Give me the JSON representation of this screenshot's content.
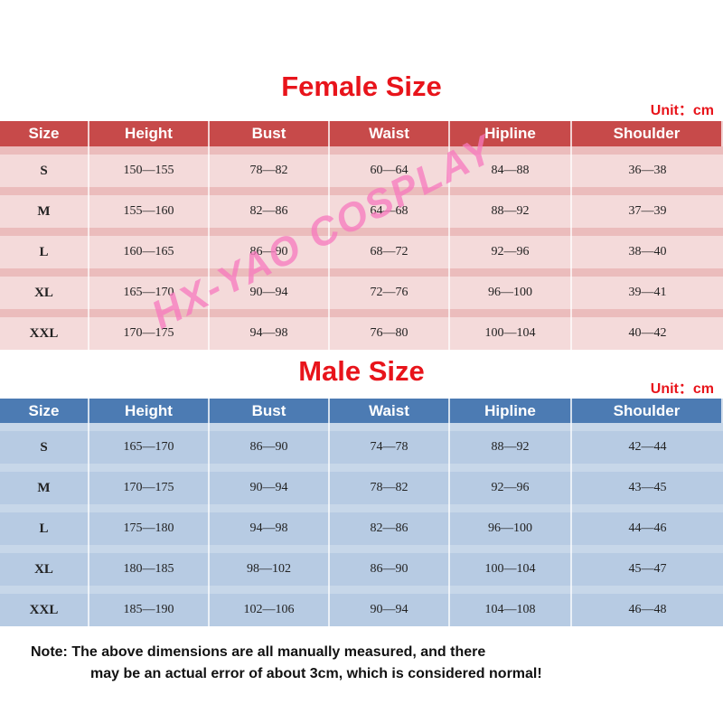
{
  "female": {
    "title": "Female Size",
    "unit": "Unit：cm",
    "headers": [
      "Size",
      "Height",
      "Bust",
      "Waist",
      "Hipline",
      "Shoulder"
    ],
    "rows": [
      [
        "S",
        "150—155",
        "78—82",
        "60—64",
        "84—88",
        "36—38"
      ],
      [
        "M",
        "155—160",
        "82—86",
        "64—68",
        "88—92",
        "37—39"
      ],
      [
        "L",
        "160—165",
        "86—90",
        "68—72",
        "92—96",
        "38—40"
      ],
      [
        "XL",
        "165—170",
        "90—94",
        "72—76",
        "96—100",
        "39—41"
      ],
      [
        "XXL",
        "170—175",
        "94—98",
        "76—80",
        "100—104",
        "40—42"
      ]
    ],
    "colors": {
      "header": "#c74a4a",
      "row": "#f4dada",
      "strip": "#ebbcbc",
      "title": "#e8141b"
    }
  },
  "male": {
    "title": "Male Size",
    "unit": "Unit：cm",
    "headers": [
      "Size",
      "Height",
      "Bust",
      "Waist",
      "Hipline",
      "Shoulder"
    ],
    "rows": [
      [
        "S",
        "165—170",
        "86—90",
        "74—78",
        "88—92",
        "42—44"
      ],
      [
        "M",
        "170—175",
        "90—94",
        "78—82",
        "92—96",
        "43—45"
      ],
      [
        "L",
        "175—180",
        "94—98",
        "82—86",
        "96—100",
        "44—46"
      ],
      [
        "XL",
        "180—185",
        "98—102",
        "86—90",
        "100—104",
        "45—47"
      ],
      [
        "XXL",
        "185—190",
        "102—106",
        "90—94",
        "104—108",
        "46—48"
      ]
    ],
    "colors": {
      "header": "#4c7bb3",
      "row": "#b7cbe3",
      "strip": "#c7d7e9",
      "title": "#e8141b"
    }
  },
  "watermark": "HX-YAO COSPLAY",
  "note": {
    "line1": "Note: The above dimensions are all manually measured, and there",
    "line2": "may be an actual error of about 3cm, which is considered normal!"
  }
}
